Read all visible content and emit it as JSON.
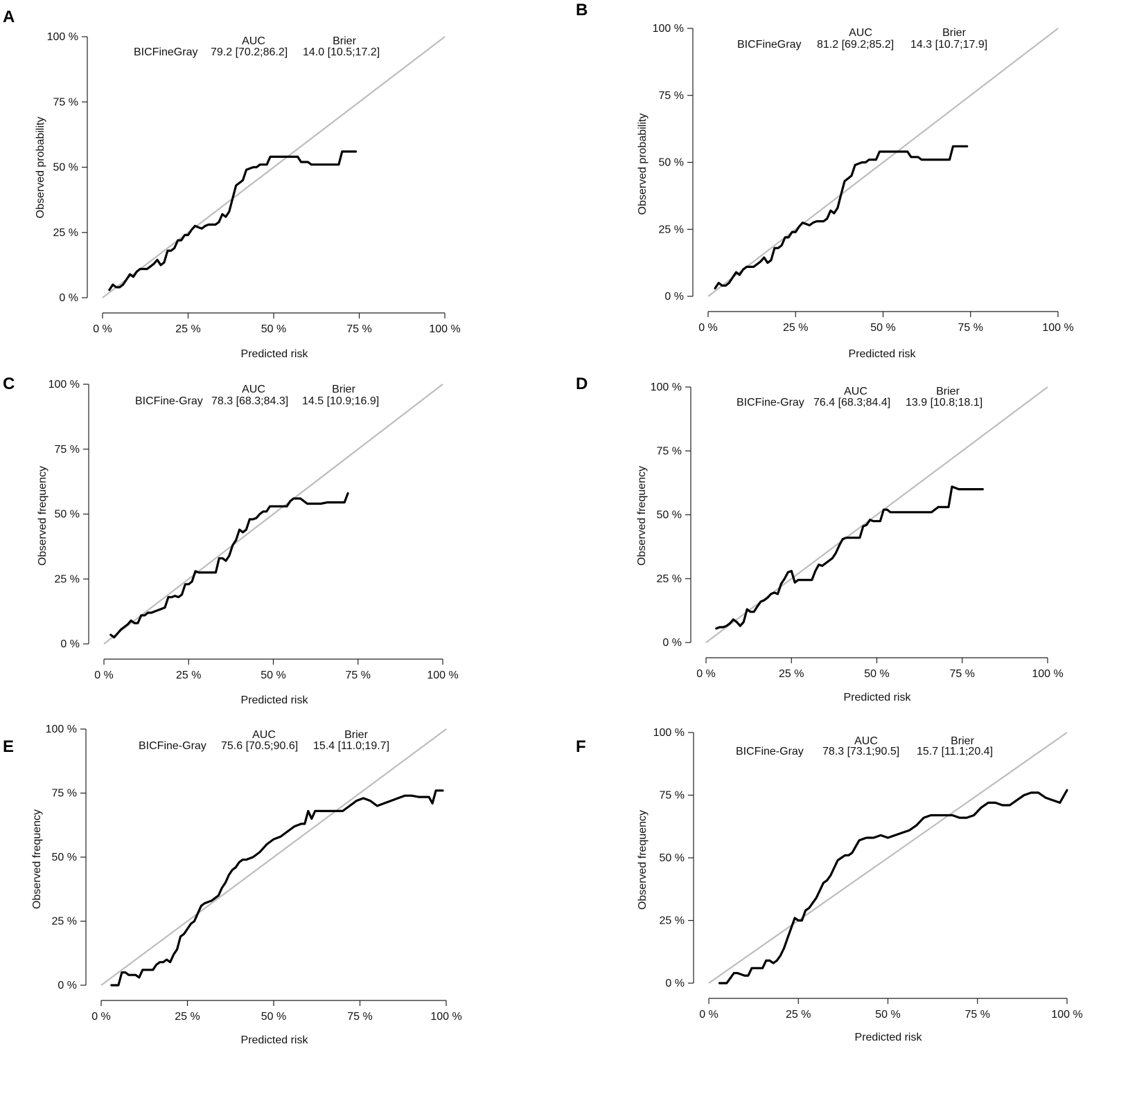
{
  "chart_data": [
    {
      "type": "line",
      "panel_label": "A",
      "xlabel": "Predicted risk",
      "ylabel": "Observed probability",
      "xlim": [
        0,
        100
      ],
      "ylim": [
        0,
        100
      ],
      "xticks": [
        "0 %",
        "25 %",
        "50 %",
        "75 %",
        "100 %"
      ],
      "yticks": [
        "0 %",
        "25 %",
        "50 %",
        "75 %",
        "100 %"
      ],
      "legend": {
        "header_auc": "AUC",
        "header_brier": "Brier",
        "model": "BICFineGray",
        "auc": "79.2 [70.2;86.2]",
        "brier": "14.0 [10.5;17.2]"
      },
      "reference_line": [
        [
          0,
          0
        ],
        [
          100,
          100
        ]
      ],
      "series": [
        {
          "name": "BICFineGray",
          "x": [
            2,
            3,
            4,
            5,
            6,
            7,
            8,
            9,
            10,
            11,
            12,
            13,
            14,
            15,
            16,
            17,
            18,
            19,
            20,
            21,
            22,
            23,
            24,
            25,
            26,
            27,
            28,
            29,
            30,
            31,
            32,
            33,
            34,
            35,
            36,
            37,
            38,
            39,
            40,
            41,
            42,
            43,
            44,
            45,
            46,
            47,
            48,
            49,
            50,
            52,
            54,
            56,
            57,
            58,
            59,
            60,
            61,
            62,
            64,
            66,
            67,
            68,
            69,
            70,
            72,
            74
          ],
          "y": [
            3,
            5,
            4,
            4,
            5,
            7,
            9,
            8,
            10,
            11,
            11,
            11,
            12,
            13,
            14.5,
            12.5,
            13.5,
            18,
            18,
            19,
            22,
            22,
            24,
            24,
            26,
            27.5,
            27,
            26.5,
            27.5,
            28,
            28,
            28,
            29,
            32,
            31,
            33,
            38,
            43,
            44,
            45,
            49,
            49.5,
            50,
            50,
            51,
            51,
            51,
            54,
            54,
            54,
            54,
            54,
            54,
            52,
            52,
            52,
            51,
            51,
            51,
            51,
            51,
            51,
            51,
            56,
            56,
            56
          ]
        }
      ]
    },
    {
      "type": "line",
      "panel_label": "B",
      "xlabel": "Predicted risk",
      "ylabel": "Observed probability",
      "xlim": [
        0,
        100
      ],
      "ylim": [
        0,
        100
      ],
      "xticks": [
        "0 %",
        "25 %",
        "50 %",
        "75 %",
        "100 %"
      ],
      "yticks": [
        "0 %",
        "25 %",
        "50 %",
        "75 %",
        "100 %"
      ],
      "legend": {
        "header_auc": "AUC",
        "header_brier": "Brier",
        "model": "BICFineGray",
        "auc": "81.2 [69.2;85.2]",
        "brier": "14.3 [10.7;17.9]"
      },
      "reference_line": [
        [
          0,
          0
        ],
        [
          100,
          100
        ]
      ],
      "series": [
        {
          "name": "BICFineGray",
          "x": [
            2,
            3,
            4,
            5,
            6,
            7,
            8,
            9,
            10,
            11,
            12,
            13,
            14,
            15,
            16,
            17,
            18,
            19,
            20,
            21,
            22,
            23,
            24,
            25,
            26,
            27,
            28,
            29,
            30,
            31,
            32,
            33,
            34,
            35,
            36,
            37,
            38,
            39,
            40,
            41,
            42,
            43,
            44,
            45,
            46,
            47,
            48,
            49,
            50,
            52,
            54,
            56,
            57,
            58,
            59,
            60,
            61,
            62,
            64,
            66,
            67,
            68,
            69,
            70,
            72,
            74
          ],
          "y": [
            3,
            5,
            4,
            4,
            5,
            7,
            9,
            8,
            10,
            11,
            11,
            11,
            12,
            13,
            14.5,
            12.5,
            13.5,
            18,
            18,
            19,
            22,
            22,
            24,
            24,
            26,
            27.5,
            27,
            26.5,
            27.5,
            28,
            28,
            28,
            29,
            32,
            31,
            33,
            38,
            43,
            44,
            45,
            49,
            49.5,
            50,
            50,
            51,
            51,
            51,
            54,
            54,
            54,
            54,
            54,
            54,
            52,
            52,
            52,
            51,
            51,
            51,
            51,
            51,
            51,
            51,
            56,
            56,
            56
          ]
        }
      ]
    },
    {
      "type": "line",
      "panel_label": "C",
      "xlabel": "Predicted risk",
      "ylabel": "Observed frequency",
      "xlim": [
        0,
        100
      ],
      "ylim": [
        0,
        100
      ],
      "xticks": [
        "0 %",
        "25 %",
        "50 %",
        "75 %",
        "100 %"
      ],
      "yticks": [
        "0 %",
        "25 %",
        "50 %",
        "75 %",
        "100 %"
      ],
      "legend": {
        "header_auc": "AUC",
        "header_brier": "Brier",
        "model": "BICFine-Gray",
        "auc": "78.3 [68.3;84.3]",
        "brier": "14.5 [10.9;16.9]"
      },
      "reference_line": [
        [
          0,
          0
        ],
        [
          100,
          100
        ]
      ],
      "series": [
        {
          "name": "BICFine-Gray",
          "x": [
            2,
            3,
            4,
            5,
            6,
            7,
            8,
            9,
            10,
            11,
            12,
            13,
            14,
            15,
            16,
            17,
            18,
            19,
            20,
            21,
            22,
            23,
            24,
            25,
            26,
            27,
            28,
            29,
            30,
            31,
            32,
            33,
            34,
            35,
            36,
            37,
            38,
            39,
            40,
            41,
            42,
            43,
            44,
            45,
            46,
            47,
            48,
            49,
            50,
            52,
            54,
            55,
            56,
            57,
            58,
            60,
            62,
            64,
            66,
            68,
            70,
            71,
            72
          ],
          "y": [
            3.5,
            2.5,
            4,
            5.5,
            6.5,
            7.5,
            9,
            8,
            8,
            11,
            11,
            12,
            12,
            12.5,
            13,
            13.5,
            14,
            18,
            18,
            18.5,
            18,
            19,
            23,
            23,
            24,
            28,
            27.5,
            27.5,
            27.5,
            27.5,
            27.5,
            27.5,
            33,
            33,
            32,
            34,
            38,
            40,
            44,
            43,
            44,
            48,
            48,
            48.5,
            50,
            51,
            51,
            53,
            53,
            53,
            53,
            55,
            56,
            56,
            56,
            54,
            54,
            54,
            54.5,
            54.5,
            54.5,
            54.5,
            58
          ]
        }
      ]
    },
    {
      "type": "line",
      "panel_label": "D",
      "xlabel": "Predicted risk",
      "ylabel": "Observed frequency",
      "xlim": [
        0,
        100
      ],
      "ylim": [
        0,
        100
      ],
      "xticks": [
        "0 %",
        "25 %",
        "50 %",
        "75 %",
        "100 %"
      ],
      "yticks": [
        "0 %",
        "25 %",
        "50 %",
        "75 %",
        "100 %"
      ],
      "legend": {
        "header_auc": "AUC",
        "header_brier": "Brier",
        "model": "BICFine-Gray",
        "auc": "76.4 [68.3;84.4]",
        "brier": "13.9 [10.8;18.1]"
      },
      "reference_line": [
        [
          0,
          0
        ],
        [
          100,
          100
        ]
      ],
      "series": [
        {
          "name": "BICFine-Gray",
          "x": [
            3,
            4,
            5,
            6,
            7,
            8,
            9,
            10,
            11,
            12,
            13,
            14,
            15,
            16,
            17,
            18,
            19,
            20,
            21,
            22,
            23,
            24,
            25,
            26,
            27,
            28,
            29,
            30,
            31,
            32,
            33,
            34,
            35,
            36,
            37,
            38,
            39,
            40,
            41,
            42,
            43,
            44,
            45,
            46,
            47,
            48,
            49,
            50,
            51,
            52,
            53,
            54,
            55,
            56,
            58,
            60,
            62,
            64,
            66,
            68,
            70,
            71,
            72,
            74,
            76,
            78,
            80,
            81
          ],
          "y": [
            5.5,
            6,
            6,
            6.5,
            7.5,
            9,
            8,
            6.5,
            8,
            13,
            12,
            12,
            14,
            16,
            16.5,
            17.5,
            19,
            19.5,
            19,
            23,
            25,
            27.5,
            28,
            23.5,
            24.5,
            24.5,
            24.5,
            24.5,
            24.5,
            28,
            30.5,
            30,
            31,
            32,
            33,
            35,
            38,
            40.5,
            41,
            41,
            41,
            41,
            41,
            45.5,
            46,
            48,
            47.5,
            47.5,
            47.5,
            52,
            52,
            51,
            51,
            51,
            51,
            51,
            51,
            51,
            51,
            53,
            53,
            53,
            61,
            60,
            60,
            60,
            60,
            60
          ]
        }
      ]
    },
    {
      "type": "line",
      "panel_label": "E",
      "xlabel": "Predicted risk",
      "ylabel": "Observed frequency",
      "xlim": [
        0,
        100
      ],
      "ylim": [
        0,
        100
      ],
      "xticks": [
        "0 %",
        "25 %",
        "50 %",
        "75 %",
        "100 %"
      ],
      "yticks": [
        "0 %",
        "25 %",
        "50 %",
        "75 %",
        "100 %"
      ],
      "legend": {
        "header_auc": "AUC",
        "header_brier": "Brier",
        "model": "BICFine-Gray",
        "auc": "75.6 [70.5;90.6]",
        "brier": "15.4 [11.0;19.7]"
      },
      "reference_line": [
        [
          0,
          0
        ],
        [
          100,
          100
        ]
      ],
      "series": [
        {
          "name": "BICFine-Gray",
          "x": [
            3,
            5,
            6,
            7,
            8,
            10,
            11,
            12,
            14,
            15,
            16,
            17,
            18,
            19,
            20,
            21,
            22,
            23,
            24,
            25,
            26,
            27,
            28,
            29,
            30,
            31,
            32,
            33,
            34,
            35,
            36,
            37,
            38,
            39,
            40,
            41,
            42,
            44,
            46,
            48,
            50,
            52,
            54,
            56,
            58,
            59,
            60,
            61,
            62,
            64,
            66,
            68,
            70,
            72,
            74,
            76,
            78,
            80,
            82,
            84,
            86,
            88,
            90,
            92,
            94,
            95,
            96,
            97,
            99
          ],
          "y": [
            0,
            0,
            5,
            5,
            4,
            4,
            3,
            6,
            6,
            6,
            8,
            9,
            9,
            10,
            9,
            12,
            14,
            19,
            20,
            22,
            24,
            25,
            28,
            31,
            32,
            32.5,
            33,
            34,
            35,
            38,
            40,
            43,
            45,
            46,
            48,
            49,
            49,
            50,
            52,
            55,
            57,
            58,
            60,
            62,
            63,
            63,
            68,
            65,
            68,
            68,
            68,
            68,
            68,
            70,
            72,
            73,
            72,
            70,
            71,
            72,
            73,
            74,
            74,
            73.5,
            73.5,
            73.5,
            71,
            76,
            76
          ]
        }
      ]
    },
    {
      "type": "line",
      "panel_label": "F",
      "xlabel": "Predicted risk",
      "ylabel": "Observed frequency",
      "xlim": [
        0,
        100
      ],
      "ylim": [
        0,
        100
      ],
      "xticks": [
        "0 %",
        "25 %",
        "50 %",
        "75 %",
        "100 %"
      ],
      "yticks": [
        "0 %",
        "25 %",
        "50 %",
        "75 %",
        "100 %"
      ],
      "legend": {
        "header_auc": "AUC",
        "header_brier": "Brier",
        "model": "BICFine-Gray",
        "auc": "78.3 [73.1;90.5]",
        "brier": "15.7 [11.1;20.4]"
      },
      "reference_line": [
        [
          0,
          0
        ],
        [
          100,
          100
        ]
      ],
      "series": [
        {
          "name": "BICFine-Gray",
          "x": [
            3,
            5,
            6,
            7,
            8,
            10,
            11,
            12,
            14,
            15,
            16,
            17,
            18,
            19,
            20,
            21,
            22,
            23,
            24,
            25,
            26,
            27,
            28,
            29,
            30,
            31,
            32,
            33,
            34,
            35,
            36,
            37,
            38,
            39,
            40,
            42,
            44,
            46,
            48,
            50,
            52,
            54,
            56,
            58,
            60,
            62,
            64,
            66,
            68,
            70,
            72,
            74,
            76,
            78,
            80,
            82,
            84,
            86,
            88,
            90,
            92,
            94,
            96,
            98,
            100
          ],
          "y": [
            0,
            0,
            2,
            4,
            4,
            3,
            3,
            6,
            6,
            6,
            9,
            9,
            8,
            9,
            11,
            14,
            18,
            22,
            26,
            25,
            25,
            29,
            30,
            32,
            34,
            37,
            40,
            41,
            43,
            46,
            49,
            50,
            51,
            51,
            52,
            57,
            58,
            58,
            59,
            58,
            59,
            60,
            61,
            63,
            66,
            67,
            67,
            67,
            67,
            66,
            66,
            67,
            70,
            72,
            72,
            71,
            71,
            73,
            75,
            76,
            76,
            74,
            73,
            72,
            77
          ]
        }
      ]
    }
  ]
}
